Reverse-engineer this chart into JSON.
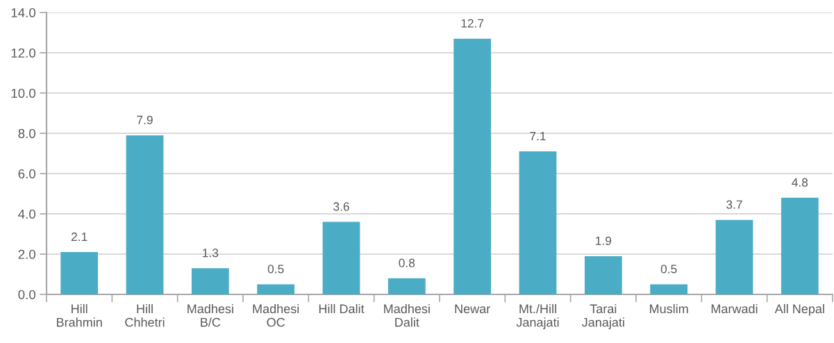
{
  "chart_data": {
    "type": "bar",
    "categories": [
      "Hill\nBrahmin",
      "Hill\nChhetri",
      "Madhesi\nB/C",
      "Madhesi\nOC",
      "Hill Dalit",
      "Madhesi\nDalit",
      "Newar",
      "Mt./Hill\nJanajati",
      "Tarai\nJanajati",
      "Muslim",
      "Marwadi",
      "All Nepal"
    ],
    "values": [
      2.1,
      7.9,
      1.3,
      0.5,
      3.6,
      0.8,
      12.7,
      7.1,
      1.9,
      0.5,
      3.7,
      4.8
    ],
    "color": "#4bacc6",
    "ylim": [
      0,
      14
    ],
    "yticks": [
      {
        "value": 0,
        "label": "0.0"
      },
      {
        "value": 2,
        "label": "2.0"
      },
      {
        "value": 4,
        "label": "4.0"
      },
      {
        "value": 6,
        "label": "6.0"
      },
      {
        "value": 8,
        "label": "8.0"
      },
      {
        "value": 10,
        "label": "10.0"
      },
      {
        "value": 12,
        "label": "12.0"
      },
      {
        "value": 14,
        "label": "14.0"
      }
    ],
    "grid": "y",
    "data_labels": true,
    "legend": false
  }
}
